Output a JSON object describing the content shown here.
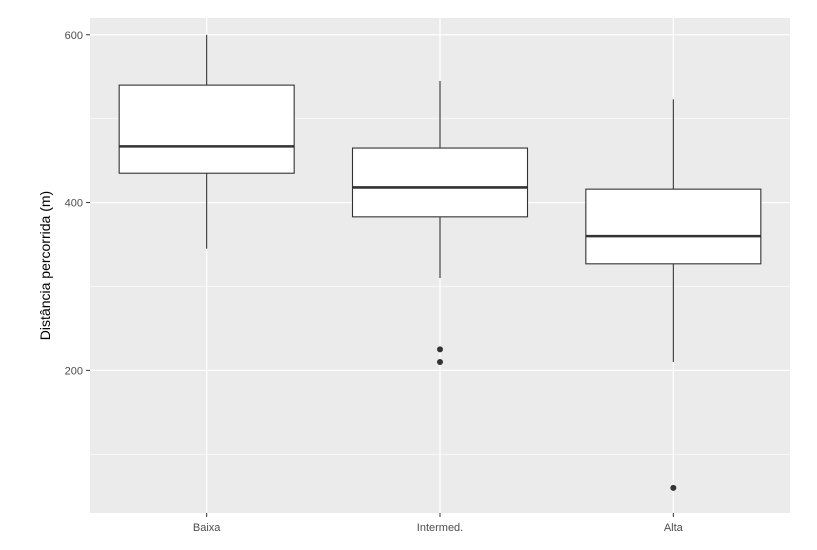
{
  "chart_data": {
    "type": "boxplot",
    "title": "",
    "xlabel": "",
    "ylabel": "Distância percorrida (m)",
    "ylim": [
      30,
      620
    ],
    "yticks": [
      200,
      400,
      600
    ],
    "y_minor_ticks": [
      100,
      300,
      500
    ],
    "grid": true,
    "categories": [
      "Baixa",
      "Intermed.",
      "Alta"
    ],
    "boxes": [
      {
        "category": "Baixa",
        "whisker_low": 345,
        "q1": 435,
        "median": 467,
        "q3": 540,
        "whisker_high": 600,
        "outliers": []
      },
      {
        "category": "Intermed.",
        "whisker_low": 310,
        "q1": 383,
        "median": 418,
        "q3": 465,
        "whisker_high": 545,
        "outliers": [
          225,
          210
        ]
      },
      {
        "category": "Alta",
        "whisker_low": 210,
        "q1": 327,
        "median": 360,
        "q3": 416,
        "whisker_high": 523,
        "outliers": [
          60
        ]
      }
    ],
    "colors": {
      "panel_background": "#ebebeb",
      "grid": "#ffffff",
      "box_fill": "#ffffff",
      "box_line": "#333333",
      "outlier": "#333333"
    }
  }
}
